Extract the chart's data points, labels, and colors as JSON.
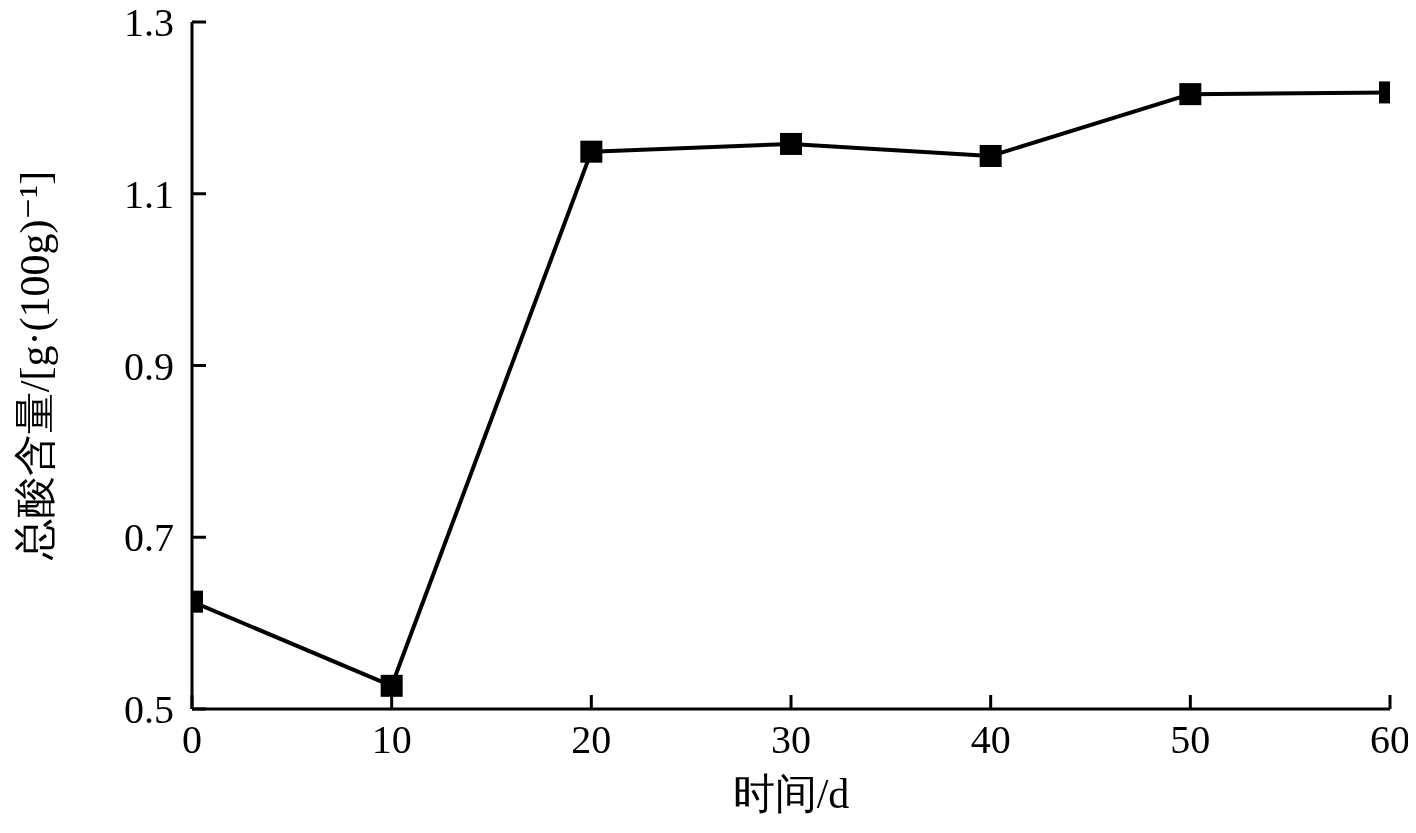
{
  "chart_data": {
    "type": "line",
    "xlabel": "时间/d",
    "ylabel": "总酸含量/[g·(100g)⁻¹]",
    "x": [
      0,
      10,
      20,
      30,
      40,
      50,
      60
    ],
    "series": [
      {
        "color": "#000000",
        "values": [
          0.625,
          0.527,
          1.149,
          1.158,
          1.144,
          1.216,
          1.218
        ]
      }
    ],
    "xlim": [
      0,
      60
    ],
    "xticks": [
      0,
      10,
      20,
      30,
      40,
      50,
      60
    ],
    "ylim": [
      0.5,
      1.3
    ],
    "yticks": [
      0.5,
      0.7,
      0.9,
      1.1,
      1.3
    ],
    "grid": false,
    "marker": "square",
    "line_style": "solid"
  }
}
